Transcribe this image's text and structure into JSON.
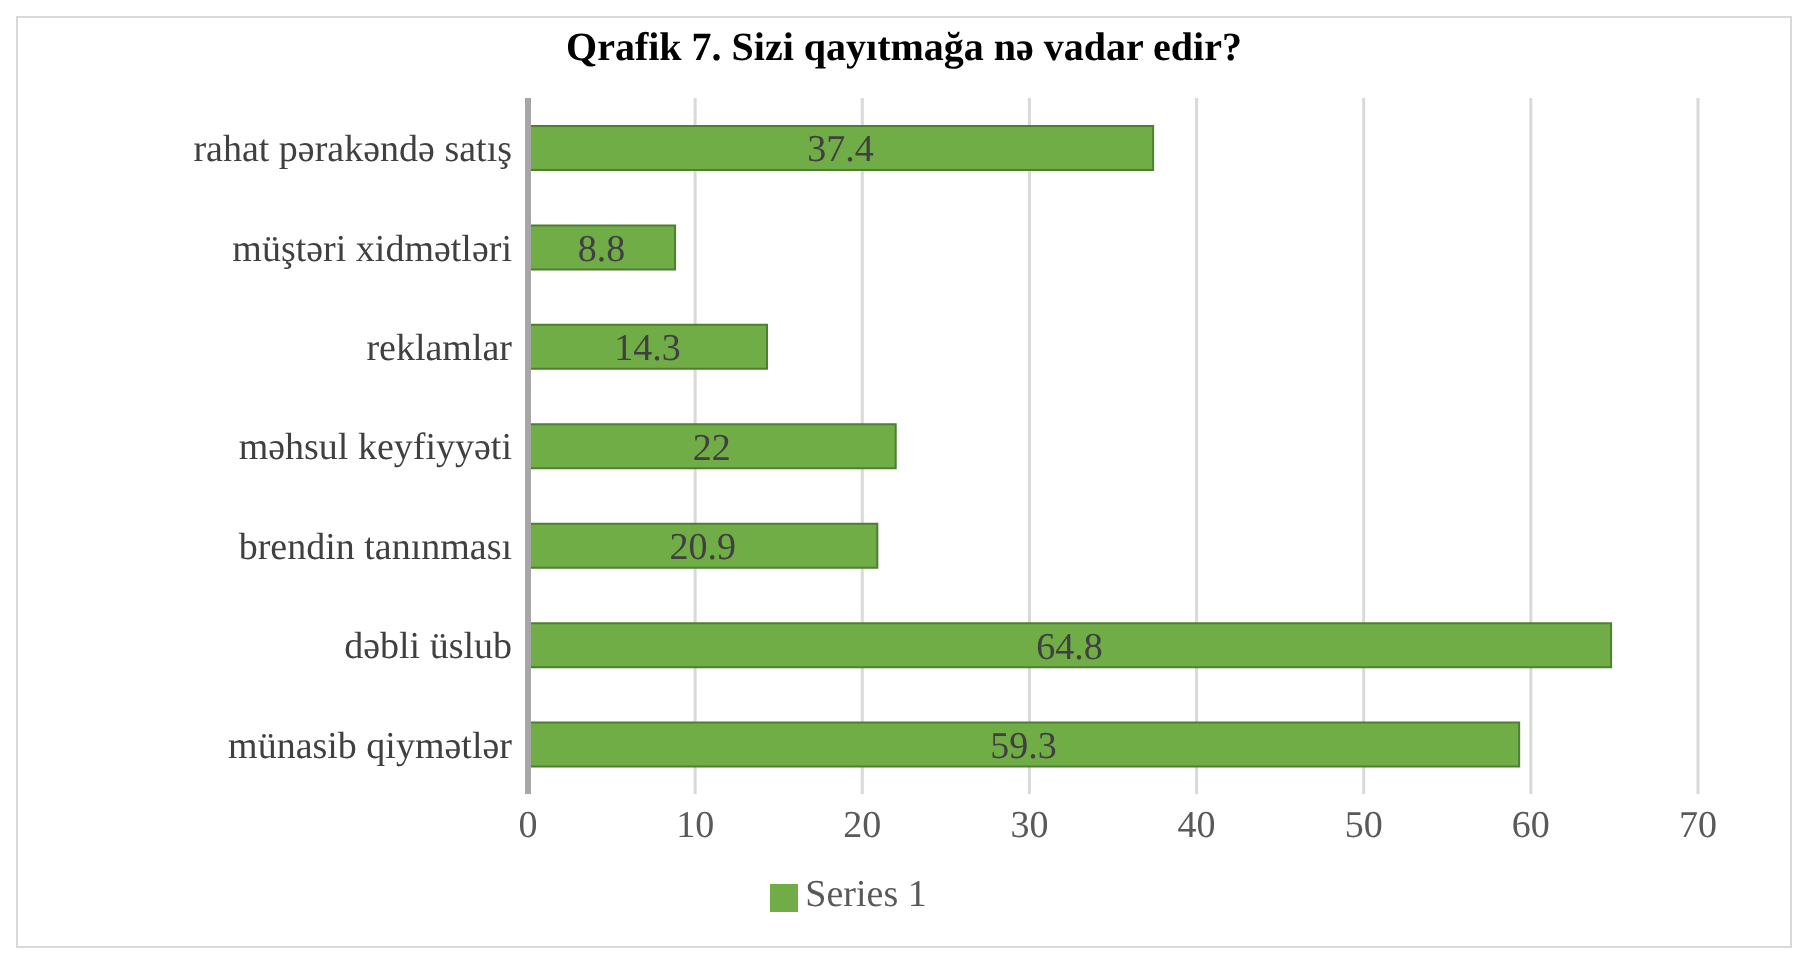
{
  "chart_data": {
    "type": "bar",
    "orientation": "horizontal",
    "title": "Qrafik 7. Sizi qayıtmağa nə vadar edir?",
    "categories": [
      "rahat pərakəndə satış",
      "müştəri xidmətləri",
      "reklamlar",
      "məhsul keyfiyyəti",
      "brendin tanınması",
      "dəbli üslub",
      "münasib qiymətlər"
    ],
    "series": [
      {
        "name": "Series 1",
        "color": "#70ad47",
        "values": [
          37.4,
          8.8,
          14.3,
          22,
          20.9,
          64.8,
          59.3
        ]
      }
    ],
    "xlim": [
      0,
      70
    ],
    "xticks": [
      0,
      10,
      20,
      30,
      40,
      50,
      60,
      70
    ],
    "grid": "x",
    "legend": "bottom",
    "data_labels": true
  }
}
